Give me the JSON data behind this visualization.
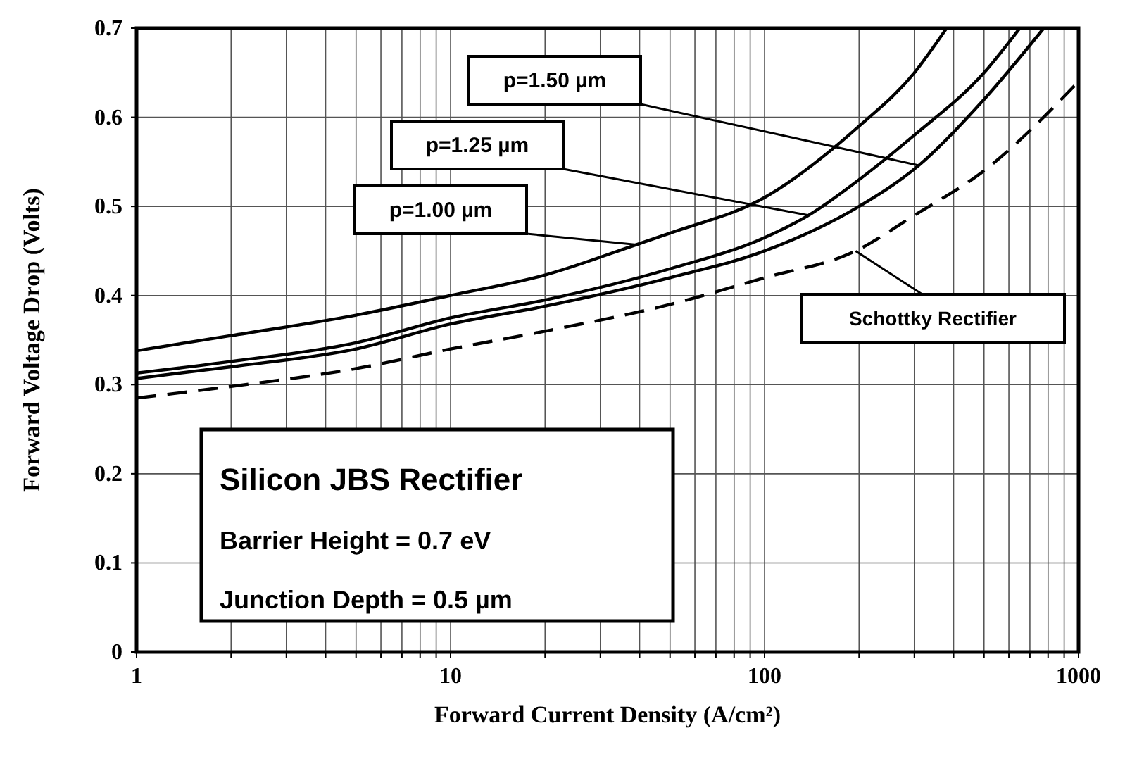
{
  "chart_data": {
    "type": "line",
    "xlabel": "Forward Current Density   (A/cm²)",
    "ylabel": "Forward Voltage Drop  (Volts)",
    "log": "x",
    "grid": true,
    "marker": "none",
    "xlim": [
      1,
      1000
    ],
    "ylim": [
      0,
      0.7
    ],
    "xticks": [
      1,
      {
        "value": 2,
        "label": null
      },
      {
        "value": 3,
        "label": null
      },
      {
        "value": 4,
        "label": null
      },
      {
        "value": 5,
        "label": null
      },
      {
        "value": 6,
        "label": null
      },
      {
        "value": 7,
        "label": null
      },
      {
        "value": 8,
        "label": null
      },
      {
        "value": 9,
        "label": null
      },
      10,
      {
        "value": 20,
        "label": null
      },
      {
        "value": 30,
        "label": null
      },
      {
        "value": 40,
        "label": null
      },
      {
        "value": 50,
        "label": null
      },
      {
        "value": 60,
        "label": null
      },
      {
        "value": 70,
        "label": null
      },
      {
        "value": 80,
        "label": null
      },
      {
        "value": 90,
        "label": null
      },
      100,
      {
        "value": 200,
        "label": null
      },
      {
        "value": 300,
        "label": null
      },
      {
        "value": 400,
        "label": null
      },
      {
        "value": 500,
        "label": null
      },
      {
        "value": 600,
        "label": null
      },
      {
        "value": 700,
        "label": null
      },
      {
        "value": 800,
        "label": null
      },
      {
        "value": 900,
        "label": null
      },
      1000
    ],
    "yticks": [
      0,
      0.1,
      0.2,
      0.3,
      0.4,
      0.5,
      0.6,
      0.7
    ],
    "series": [
      {
        "name": "p=1.00 µm",
        "color": "#000000",
        "line_style": "solid",
        "x": [
          1,
          2,
          5,
          10,
          20,
          39,
          50,
          100,
          200,
          300,
          380
        ],
        "values": [
          0.338,
          0.355,
          0.378,
          0.4,
          0.423,
          0.457,
          0.47,
          0.51,
          0.59,
          0.65,
          0.7
        ]
      },
      {
        "name": "p=1.25 µm",
        "color": "#000000",
        "line_style": "solid",
        "x": [
          1,
          2,
          5,
          10,
          20,
          50,
          100,
          138,
          200,
          300,
          500,
          650
        ],
        "values": [
          0.313,
          0.326,
          0.347,
          0.375,
          0.395,
          0.43,
          0.465,
          0.49,
          0.53,
          0.58,
          0.65,
          0.7
        ]
      },
      {
        "name": "p=1.50 µm",
        "color": "#000000",
        "line_style": "solid",
        "x": [
          1,
          2,
          5,
          10,
          20,
          50,
          100,
          200,
          310,
          500,
          775
        ],
        "values": [
          0.307,
          0.32,
          0.34,
          0.368,
          0.388,
          0.42,
          0.45,
          0.5,
          0.546,
          0.62,
          0.7
        ]
      },
      {
        "name": "Schottky Rectifier",
        "color": "#000000",
        "line_style": "dashed",
        "x": [
          1,
          2,
          5,
          10,
          20,
          50,
          100,
          195,
          300,
          500,
          1000
        ],
        "values": [
          0.285,
          0.298,
          0.318,
          0.34,
          0.36,
          0.39,
          0.42,
          0.45,
          0.49,
          0.54,
          0.64
        ]
      }
    ],
    "annotations": [
      "Silicon JBS Rectifier",
      "Barrier Height = 0.7 eV",
      "Junction Depth = 0.5 µm"
    ]
  }
}
